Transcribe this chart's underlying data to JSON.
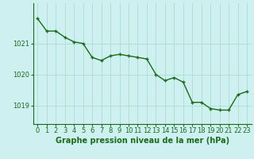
{
  "x": [
    0,
    1,
    2,
    3,
    4,
    5,
    6,
    7,
    8,
    9,
    10,
    11,
    12,
    13,
    14,
    15,
    16,
    17,
    18,
    19,
    20,
    21,
    22,
    23
  ],
  "y": [
    1021.8,
    1021.4,
    1021.4,
    1021.2,
    1021.05,
    1021.0,
    1020.55,
    1020.45,
    1020.6,
    1020.65,
    1020.6,
    1020.55,
    1020.5,
    1020.0,
    1019.8,
    1019.9,
    1019.75,
    1019.1,
    1019.1,
    1018.9,
    1018.85,
    1018.85,
    1019.35,
    1019.45
  ],
  "line_color": "#1a6b1a",
  "marker": "+",
  "marker_size": 3,
  "linewidth": 1.0,
  "background_color": "#cff0f0",
  "grid_color": "#aaddcc",
  "xlabel": "Graphe pression niveau de la mer (hPa)",
  "xlabel_color": "#1a6b1a",
  "xlabel_fontsize": 7,
  "tick_color": "#1a6b1a",
  "tick_fontsize": 6,
  "yticks": [
    1019,
    1020,
    1021
  ],
  "ylim": [
    1018.4,
    1022.3
  ],
  "xlim": [
    -0.5,
    23.5
  ],
  "xtick_labels": [
    "0",
    "1",
    "2",
    "3",
    "4",
    "5",
    "6",
    "7",
    "8",
    "9",
    "10",
    "11",
    "12",
    "13",
    "14",
    "15",
    "16",
    "17",
    "18",
    "19",
    "20",
    "21",
    "22",
    "23"
  ]
}
